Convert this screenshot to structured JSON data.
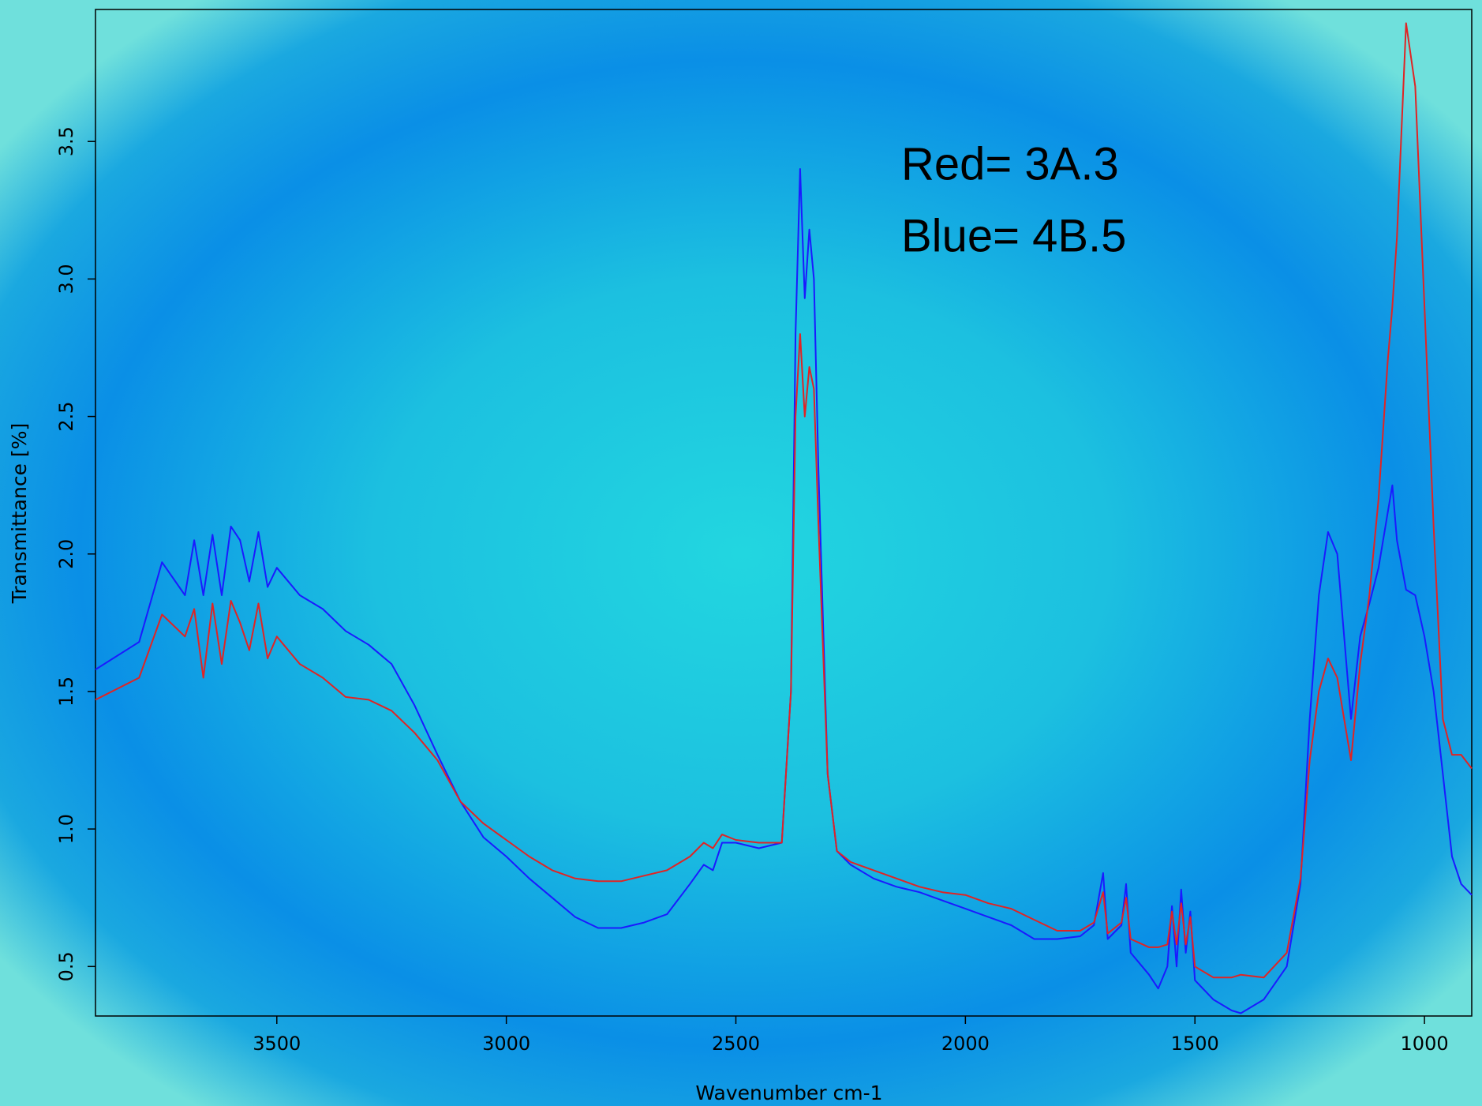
{
  "chart_data": {
    "type": "line",
    "xlabel": "Wavenumber cm-1",
    "ylabel": "Transmittance [%]",
    "annotations": [
      "Red= 3A.3",
      "Blue= 4B.5"
    ],
    "xlim": [
      3895,
      897
    ],
    "ylim": [
      0.32,
      3.98
    ],
    "xticks": [
      3500,
      3000,
      2500,
      2000,
      1500,
      1000
    ],
    "yticks": [
      0.5,
      {
        "value": 1,
        "label": "1.0"
      },
      1.5,
      {
        "value": 2,
        "label": "2.0"
      },
      2.5,
      {
        "value": 3,
        "label": "3.0"
      },
      3.5
    ],
    "x": [
      3895,
      3800,
      3750,
      3700,
      3680,
      3660,
      3640,
      3620,
      3600,
      3580,
      3560,
      3540,
      3520,
      3500,
      3450,
      3400,
      3350,
      3300,
      3250,
      3200,
      3150,
      3100,
      3050,
      3000,
      2950,
      2900,
      2850,
      2800,
      2750,
      2700,
      2650,
      2600,
      2570,
      2550,
      2530,
      2500,
      2450,
      2400,
      2380,
      2370,
      2360,
      2350,
      2340,
      2330,
      2320,
      2300,
      2280,
      2250,
      2200,
      2150,
      2100,
      2050,
      2000,
      1950,
      1900,
      1850,
      1800,
      1750,
      1720,
      1700,
      1690,
      1660,
      1650,
      1640,
      1600,
      1580,
      1560,
      1550,
      1540,
      1530,
      1520,
      1510,
      1500,
      1460,
      1420,
      1400,
      1350,
      1300,
      1270,
      1250,
      1230,
      1210,
      1190,
      1170,
      1160,
      1140,
      1120,
      1100,
      1080,
      1070,
      1060,
      1040,
      1020,
      1000,
      980,
      960,
      940,
      920,
      897
    ],
    "series": [
      {
        "name": "Blue",
        "color": "#1a1aff",
        "values": [
          1.58,
          1.68,
          1.97,
          1.85,
          2.05,
          1.85,
          2.07,
          1.85,
          2.1,
          2.05,
          1.9,
          2.08,
          1.88,
          1.95,
          1.85,
          1.8,
          1.72,
          1.67,
          1.6,
          1.45,
          1.27,
          1.1,
          0.97,
          0.9,
          0.82,
          0.75,
          0.68,
          0.64,
          0.64,
          0.66,
          0.69,
          0.8,
          0.87,
          0.85,
          0.95,
          0.95,
          0.93,
          0.95,
          1.5,
          2.8,
          3.4,
          2.93,
          3.18,
          3.0,
          2.3,
          1.2,
          0.92,
          0.87,
          0.82,
          0.79,
          0.77,
          0.74,
          0.71,
          0.68,
          0.65,
          0.6,
          0.6,
          0.61,
          0.65,
          0.84,
          0.6,
          0.65,
          0.8,
          0.55,
          0.47,
          0.42,
          0.5,
          0.72,
          0.5,
          0.78,
          0.55,
          0.7,
          0.45,
          0.38,
          0.34,
          0.33,
          0.38,
          0.5,
          0.8,
          1.4,
          1.85,
          2.08,
          2.0,
          1.6,
          1.4,
          1.7,
          1.82,
          1.95,
          2.15,
          2.25,
          2.05,
          1.87,
          1.85,
          1.7,
          1.5,
          1.2,
          0.9,
          0.8,
          0.76
        ]
      },
      {
        "name": "Red",
        "color": "#e02424",
        "values": [
          1.47,
          1.55,
          1.78,
          1.7,
          1.8,
          1.55,
          1.82,
          1.6,
          1.83,
          1.75,
          1.65,
          1.82,
          1.62,
          1.7,
          1.6,
          1.55,
          1.48,
          1.47,
          1.43,
          1.35,
          1.25,
          1.1,
          1.02,
          0.96,
          0.9,
          0.85,
          0.82,
          0.81,
          0.81,
          0.83,
          0.85,
          0.9,
          0.95,
          0.93,
          0.98,
          0.96,
          0.95,
          0.95,
          1.5,
          2.5,
          2.8,
          2.5,
          2.68,
          2.6,
          2.1,
          1.2,
          0.92,
          0.88,
          0.85,
          0.82,
          0.79,
          0.77,
          0.76,
          0.73,
          0.71,
          0.67,
          0.63,
          0.63,
          0.66,
          0.77,
          0.62,
          0.66,
          0.75,
          0.6,
          0.57,
          0.57,
          0.58,
          0.7,
          0.58,
          0.73,
          0.58,
          0.68,
          0.5,
          0.46,
          0.46,
          0.47,
          0.46,
          0.55,
          0.82,
          1.25,
          1.5,
          1.62,
          1.55,
          1.35,
          1.25,
          1.6,
          1.85,
          2.2,
          2.7,
          2.9,
          3.15,
          3.93,
          3.7,
          2.9,
          2.1,
          1.4,
          1.27,
          1.27,
          1.22
        ]
      }
    ]
  }
}
